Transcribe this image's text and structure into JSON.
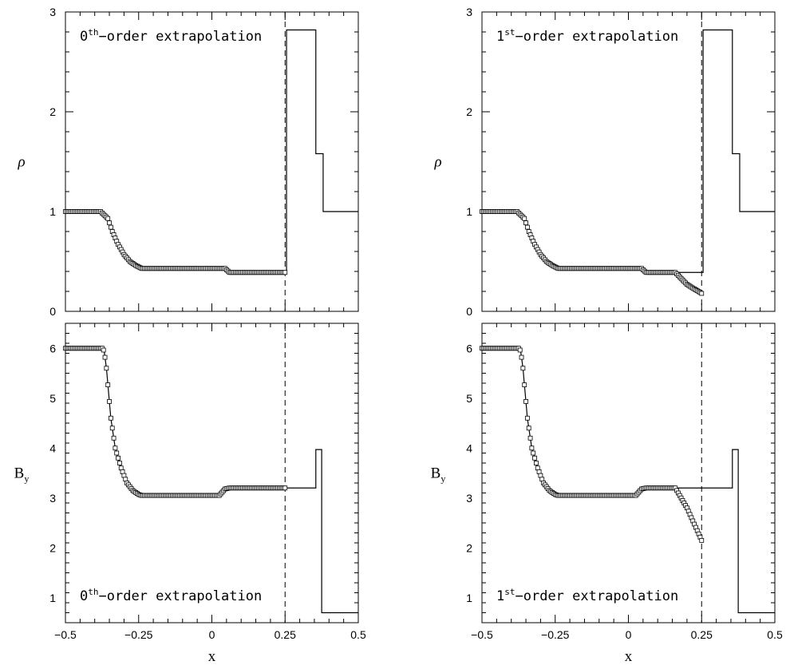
{
  "chart_data": [
    {
      "type": "line",
      "panel": "top-left",
      "ylabel": "ρ",
      "xlabel": "",
      "xlim": [
        -0.5,
        0.5
      ],
      "ylim": [
        0,
        3
      ],
      "x_ticks": [
        -0.5,
        -0.25,
        0,
        0.25,
        0.5
      ],
      "x_tick_labels": [
        "",
        "",
        "",
        "",
        ""
      ],
      "y_ticks": [
        0,
        1,
        2,
        3
      ],
      "y_tick_labels": [
        "0",
        "1",
        "2",
        "3"
      ],
      "annotation": {
        "base": "0",
        "sup": "th",
        "text": "−order extrapolation",
        "position": "top-left"
      },
      "dashed_line_x": 0.25,
      "series": [
        {
          "style": "solid-step",
          "x": [
            -0.5,
            -0.38,
            -0.355,
            -0.34,
            -0.32,
            -0.3,
            -0.28,
            -0.26,
            -0.24,
            -0.235,
            0.0,
            0.03,
            0.045,
            0.06,
            0.255,
            0.255,
            0.355,
            0.355,
            0.38,
            0.38,
            0.5
          ],
          "y": [
            1.0,
            1.0,
            0.93,
            0.8,
            0.67,
            0.57,
            0.5,
            0.46,
            0.43,
            0.43,
            0.43,
            0.43,
            0.43,
            0.39,
            0.39,
            2.82,
            2.82,
            1.58,
            1.58,
            1.0,
            1.0
          ]
        },
        {
          "style": "squares",
          "x": [
            -0.5,
            -0.38,
            -0.355,
            -0.34,
            -0.32,
            -0.3,
            -0.28,
            -0.26,
            -0.24,
            -0.235,
            0.0,
            0.03,
            0.045,
            0.06,
            0.25
          ],
          "y": [
            1.0,
            1.0,
            0.93,
            0.8,
            0.67,
            0.57,
            0.5,
            0.46,
            0.43,
            0.43,
            0.43,
            0.43,
            0.43,
            0.39,
            0.39
          ]
        }
      ]
    },
    {
      "type": "line",
      "panel": "top-right",
      "ylabel": "ρ",
      "xlabel": "",
      "xlim": [
        -0.5,
        0.5
      ],
      "ylim": [
        0,
        3
      ],
      "x_ticks": [
        -0.5,
        -0.25,
        0,
        0.25,
        0.5
      ],
      "x_tick_labels": [
        "",
        "",
        "",
        "",
        ""
      ],
      "y_ticks": [
        0,
        1,
        2,
        3
      ],
      "y_tick_labels": [
        "0",
        "1",
        "2",
        "3"
      ],
      "annotation": {
        "base": "1",
        "sup": "st",
        "text": "−order extrapolation",
        "position": "top-left"
      },
      "dashed_line_x": 0.25,
      "series": [
        {
          "style": "solid-step",
          "x": [
            -0.5,
            -0.38,
            -0.355,
            -0.34,
            -0.32,
            -0.3,
            -0.28,
            -0.26,
            -0.24,
            -0.235,
            0.0,
            0.03,
            0.045,
            0.06,
            0.255,
            0.255,
            0.355,
            0.355,
            0.38,
            0.38,
            0.5
          ],
          "y": [
            1.0,
            1.0,
            0.93,
            0.8,
            0.67,
            0.57,
            0.5,
            0.46,
            0.43,
            0.43,
            0.43,
            0.43,
            0.43,
            0.39,
            0.39,
            2.82,
            2.82,
            1.58,
            1.58,
            1.0,
            1.0
          ]
        },
        {
          "style": "squares",
          "x": [
            -0.5,
            -0.38,
            -0.355,
            -0.34,
            -0.32,
            -0.3,
            -0.28,
            -0.26,
            -0.24,
            -0.235,
            0.0,
            0.03,
            0.045,
            0.06,
            0.16,
            0.2,
            0.25
          ],
          "y": [
            1.0,
            1.0,
            0.93,
            0.8,
            0.67,
            0.57,
            0.5,
            0.46,
            0.43,
            0.43,
            0.43,
            0.43,
            0.43,
            0.39,
            0.39,
            0.27,
            0.18
          ]
        }
      ]
    },
    {
      "type": "line",
      "panel": "bottom-left",
      "ylabel": "B",
      "ylabel_sub": "y",
      "xlabel": "x",
      "xlim": [
        -0.5,
        0.5
      ],
      "ylim": [
        0.5,
        6.5
      ],
      "x_ticks": [
        -0.5,
        -0.25,
        0,
        0.25,
        0.5
      ],
      "x_tick_labels": [
        "−0.5",
        "−0.25",
        "0",
        "0.25",
        "0.5"
      ],
      "y_ticks": [
        1,
        2,
        3,
        4,
        5,
        6
      ],
      "y_tick_labels": [
        "1",
        "2",
        "3",
        "4",
        "5",
        "6"
      ],
      "annotation": {
        "base": "0",
        "sup": "th",
        "text": "−order extrapolation",
        "position": "bottom-left"
      },
      "dashed_line_x": 0.25,
      "series": [
        {
          "style": "solid-step",
          "x": [
            -0.5,
            -0.375,
            -0.368,
            -0.36,
            -0.345,
            -0.33,
            -0.31,
            -0.29,
            -0.27,
            -0.25,
            -0.24,
            0.0,
            0.025,
            0.045,
            0.06,
            0.255,
            0.355,
            0.355,
            0.375,
            0.375,
            0.5
          ],
          "y": [
            6.0,
            6.0,
            5.95,
            5.6,
            4.6,
            4.0,
            3.6,
            3.3,
            3.15,
            3.07,
            3.05,
            3.05,
            3.05,
            3.18,
            3.2,
            3.2,
            3.2,
            3.97,
            3.97,
            0.7,
            0.7
          ]
        },
        {
          "style": "squares",
          "x": [
            -0.5,
            -0.375,
            -0.368,
            -0.36,
            -0.345,
            -0.33,
            -0.31,
            -0.29,
            -0.27,
            -0.25,
            -0.24,
            0.0,
            0.025,
            0.045,
            0.06,
            0.25
          ],
          "y": [
            6.0,
            6.0,
            5.95,
            5.6,
            4.6,
            4.0,
            3.6,
            3.3,
            3.15,
            3.07,
            3.05,
            3.05,
            3.05,
            3.18,
            3.2,
            3.2
          ]
        }
      ]
    },
    {
      "type": "line",
      "panel": "bottom-right",
      "ylabel": "B",
      "ylabel_sub": "y",
      "xlabel": "x",
      "xlim": [
        -0.5,
        0.5
      ],
      "ylim": [
        0.5,
        6.5
      ],
      "x_ticks": [
        -0.5,
        -0.25,
        0,
        0.25,
        0.5
      ],
      "x_tick_labels": [
        "−0.5",
        "−0.25",
        "0",
        "0.25",
        "0.5"
      ],
      "y_ticks": [
        1,
        2,
        3,
        4,
        5,
        6
      ],
      "y_tick_labels": [
        "1",
        "2",
        "3",
        "4",
        "5",
        "6"
      ],
      "annotation": {
        "base": "1",
        "sup": "st",
        "text": "−order extrapolation",
        "position": "bottom-left"
      },
      "dashed_line_x": 0.25,
      "series": [
        {
          "style": "solid-step",
          "x": [
            -0.5,
            -0.375,
            -0.368,
            -0.36,
            -0.345,
            -0.33,
            -0.31,
            -0.29,
            -0.27,
            -0.25,
            -0.24,
            0.0,
            0.025,
            0.045,
            0.06,
            0.255,
            0.355,
            0.355,
            0.375,
            0.375,
            0.5
          ],
          "y": [
            6.0,
            6.0,
            5.95,
            5.6,
            4.6,
            4.0,
            3.6,
            3.3,
            3.15,
            3.07,
            3.05,
            3.05,
            3.05,
            3.18,
            3.2,
            3.2,
            3.2,
            3.97,
            3.97,
            0.7,
            0.7
          ]
        },
        {
          "style": "squares",
          "x": [
            -0.5,
            -0.375,
            -0.368,
            -0.36,
            -0.345,
            -0.33,
            -0.31,
            -0.29,
            -0.27,
            -0.25,
            -0.24,
            0.0,
            0.025,
            0.045,
            0.06,
            0.16,
            0.2,
            0.25
          ],
          "y": [
            6.0,
            6.0,
            5.95,
            5.6,
            4.6,
            4.0,
            3.6,
            3.3,
            3.15,
            3.07,
            3.05,
            3.05,
            3.05,
            3.18,
            3.2,
            3.2,
            2.8,
            2.15
          ]
        }
      ]
    }
  ]
}
